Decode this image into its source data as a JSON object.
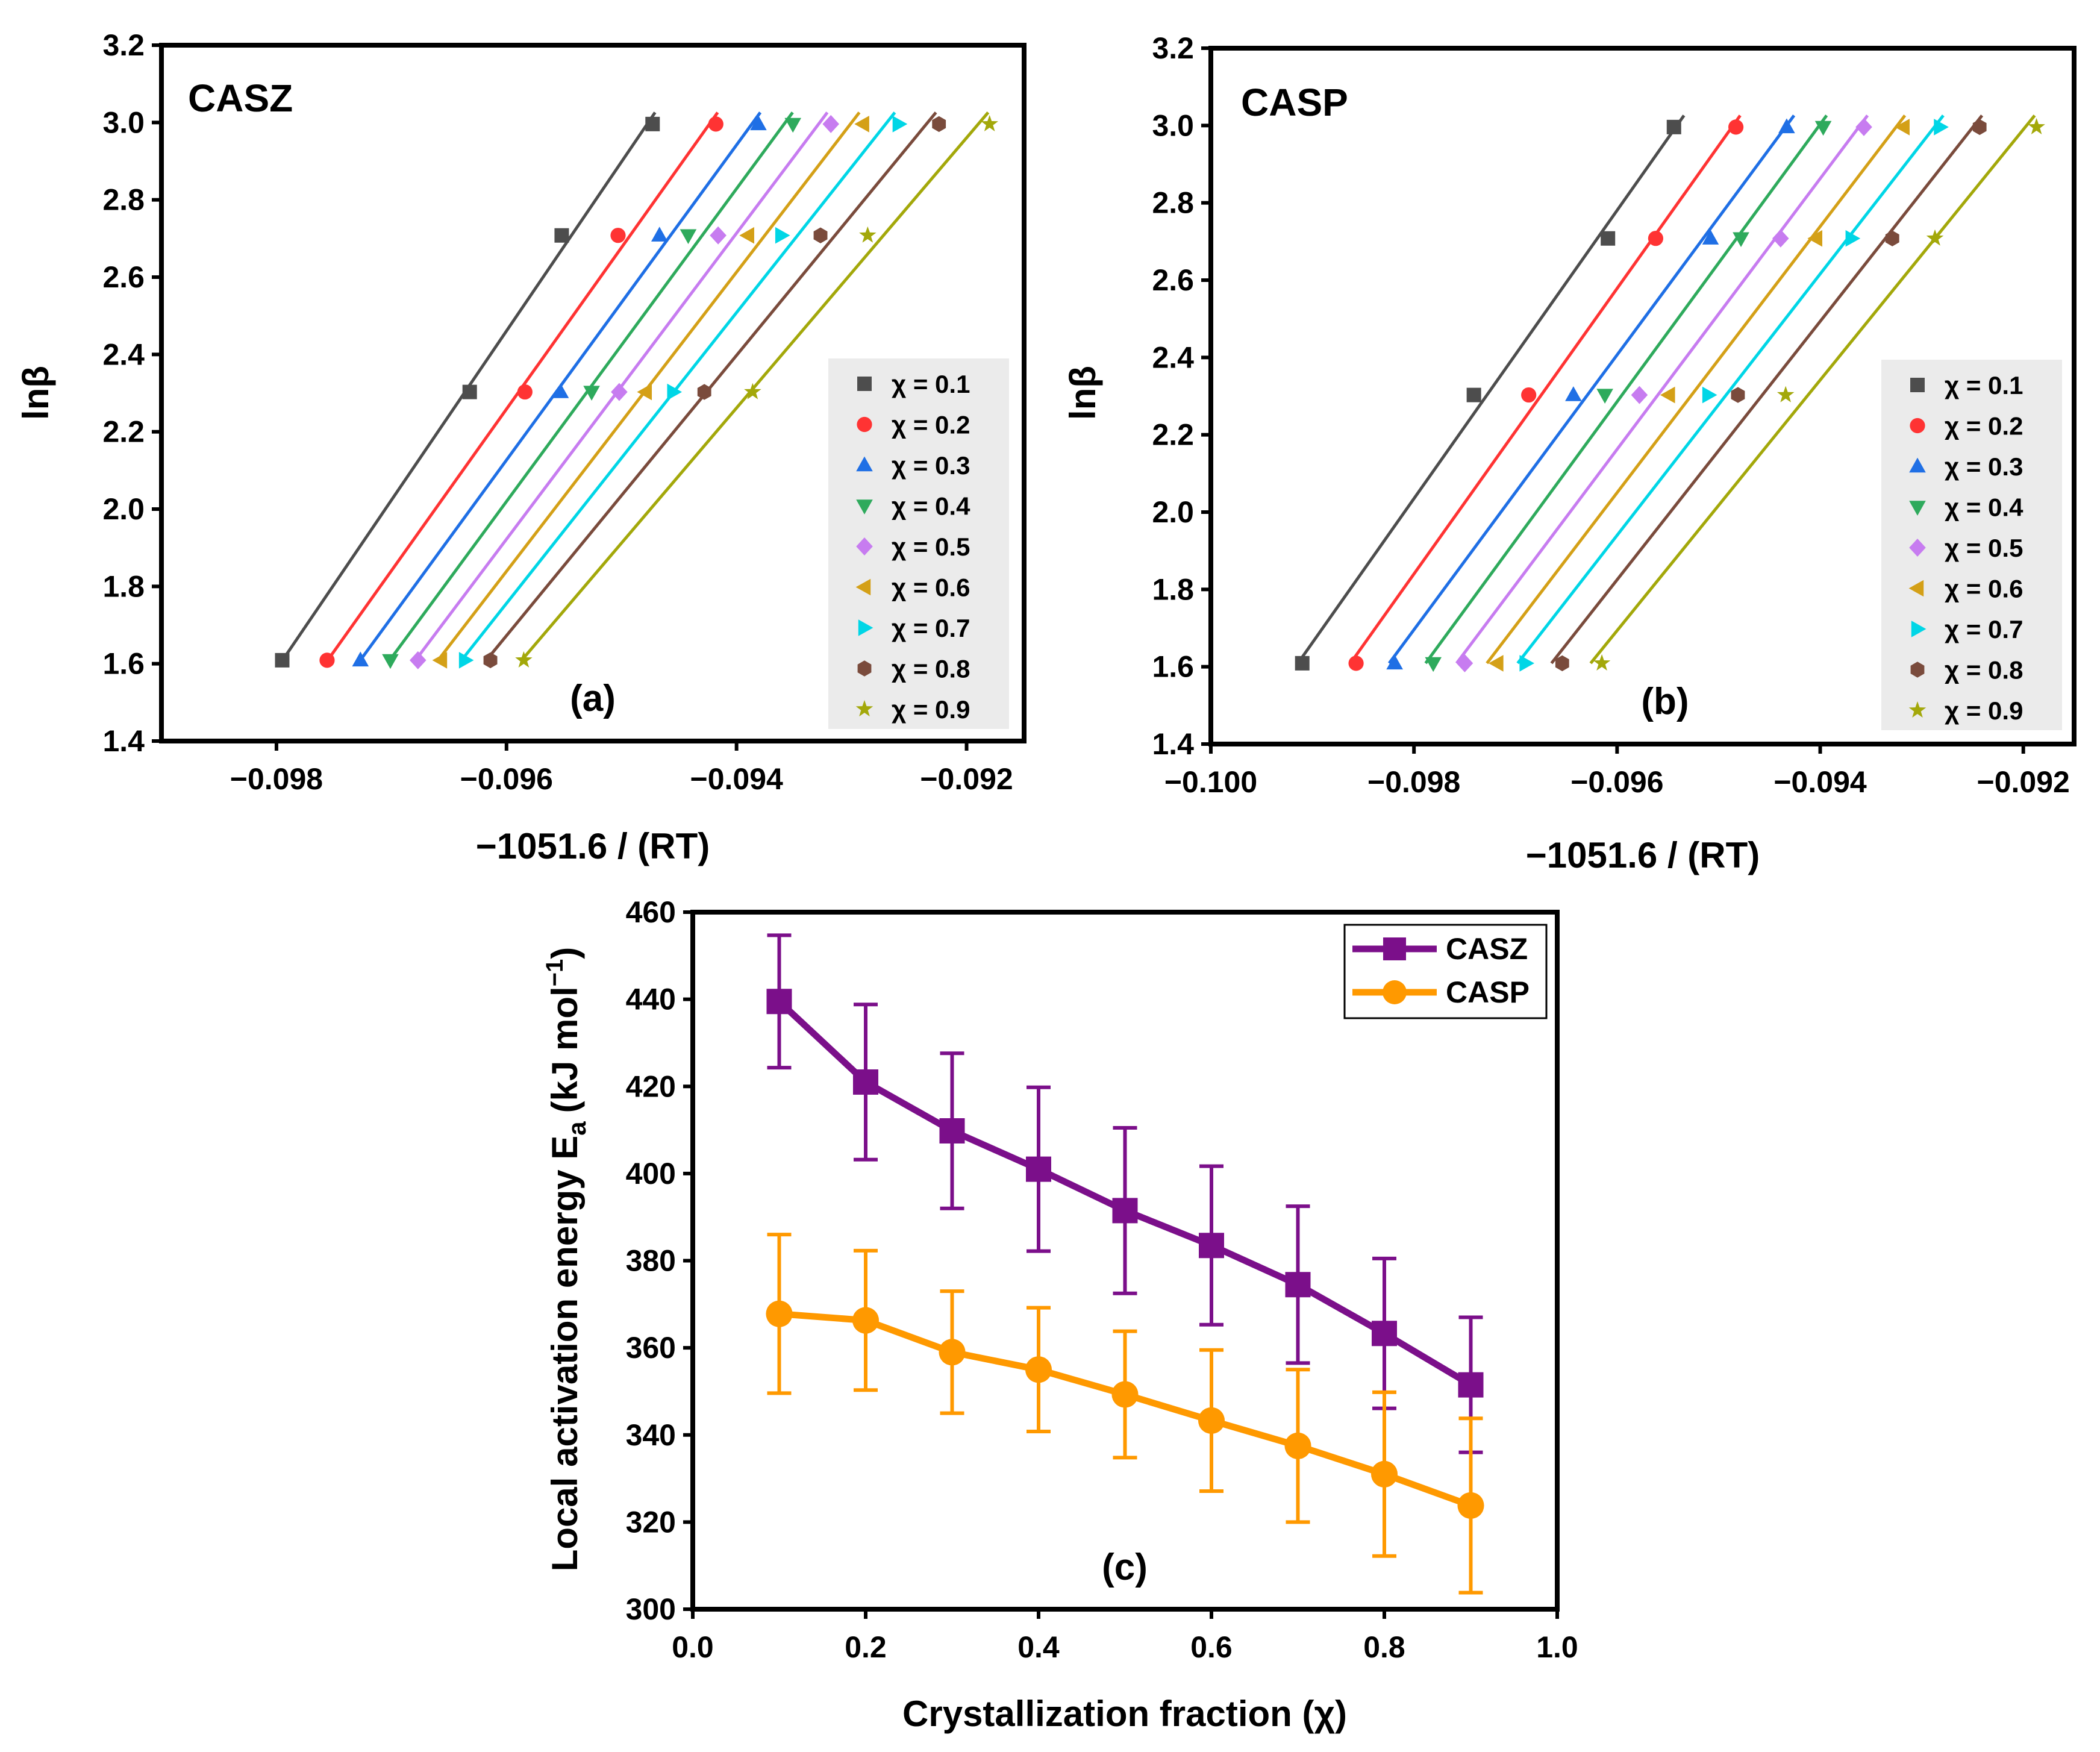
{
  "chart_data": [
    {
      "type": "scatter",
      "title": "CASZ",
      "panel_label": "(a)",
      "xlabel": "−1051.6 / (RT)",
      "ylabel": "lnβ",
      "xlim": [
        -0.099,
        -0.0915
      ],
      "ylim": [
        1.4,
        3.2
      ],
      "x_ticks": [
        "−0.098",
        "−0.096",
        "−0.094",
        "−0.092"
      ],
      "y_ticks": [
        "1.4",
        "1.6",
        "1.8",
        "2.0",
        "2.2",
        "2.4",
        "2.6",
        "2.8",
        "3.0",
        "3.2"
      ],
      "y_values": [
        1.609,
        2.303,
        2.708,
        2.996
      ],
      "legend_position": "right",
      "series": [
        {
          "name": "χ = 0.1",
          "x": [
            -0.09795,
            -0.09632,
            -0.09552,
            -0.09473
          ]
        },
        {
          "name": "χ = 0.2",
          "x": [
            -0.09756,
            -0.09584,
            -0.09503,
            -0.09418
          ]
        },
        {
          "name": "χ = 0.3",
          "x": [
            -0.09727,
            -0.09553,
            -0.09467,
            -0.09381
          ]
        },
        {
          "name": "χ = 0.4",
          "x": [
            -0.09701,
            -0.09526,
            -0.09442,
            -0.09351
          ]
        },
        {
          "name": "χ = 0.5",
          "x": [
            -0.09677,
            -0.09502,
            -0.09416,
            -0.09318
          ]
        },
        {
          "name": "χ = 0.6",
          "x": [
            -0.09657,
            -0.09479,
            -0.0939,
            -0.0929
          ]
        },
        {
          "name": "χ = 0.7",
          "x": [
            -0.09636,
            -0.09455,
            -0.09361,
            -0.09259
          ]
        },
        {
          "name": "χ = 0.8",
          "x": [
            -0.09614,
            -0.09428,
            -0.09327,
            -0.09224
          ]
        },
        {
          "name": "χ = 0.9",
          "x": [
            -0.09585,
            -0.09386,
            -0.09286,
            -0.0918
          ]
        }
      ]
    },
    {
      "type": "scatter",
      "title": "CASP",
      "panel_label": "(b)",
      "xlabel": "−1051.6 / (RT)",
      "ylabel": "lnβ",
      "xlim": [
        -0.1,
        -0.0915
      ],
      "ylim": [
        1.4,
        3.2
      ],
      "x_ticks": [
        "−0.100",
        "−0.098",
        "−0.096",
        "−0.094",
        "−0.092"
      ],
      "y_ticks": [
        "1.4",
        "1.6",
        "1.8",
        "2.0",
        "2.2",
        "2.4",
        "2.6",
        "2.8",
        "3.0",
        "3.2"
      ],
      "y_values": [
        1.609,
        2.303,
        2.708,
        2.996
      ],
      "legend_position": "right",
      "series": [
        {
          "name": "χ = 0.1",
          "x": [
            -0.0991,
            -0.09741,
            -0.09609,
            -0.09544
          ]
        },
        {
          "name": "χ = 0.2",
          "x": [
            -0.09857,
            -0.09687,
            -0.09562,
            -0.09483
          ]
        },
        {
          "name": "χ = 0.3",
          "x": [
            -0.09819,
            -0.09643,
            -0.09508,
            -0.09433
          ]
        },
        {
          "name": "χ = 0.4",
          "x": [
            -0.09781,
            -0.09612,
            -0.09478,
            -0.09397
          ]
        },
        {
          "name": "χ = 0.5",
          "x": [
            -0.0975,
            -0.09578,
            -0.09439,
            -0.09357
          ]
        },
        {
          "name": "χ = 0.6",
          "x": [
            -0.09718,
            -0.09549,
            -0.09404,
            -0.09318
          ]
        },
        {
          "name": "χ = 0.7",
          "x": [
            -0.0969,
            -0.0951,
            -0.09369,
            -0.09282
          ]
        },
        {
          "name": "χ = 0.8",
          "x": [
            -0.09654,
            -0.09481,
            -0.09329,
            -0.09243
          ]
        },
        {
          "name": "χ = 0.9",
          "x": [
            -0.09615,
            -0.09434,
            -0.09287,
            -0.09187
          ]
        }
      ]
    },
    {
      "type": "line",
      "panel_label": "(c)",
      "xlabel": "Crystallization fraction (χ)",
      "ylabel": "Local activation energy E",
      "ylabel_subscript": "a",
      "ylabel_units": "(kJ mol",
      "ylabel_units_sup": "−1",
      "ylabel_units_end": ")",
      "xlim": [
        0.0,
        1.0
      ],
      "ylim": [
        300,
        460
      ],
      "x_ticks": [
        "0.0",
        "0.2",
        "0.4",
        "0.6",
        "0.8",
        "1.0"
      ],
      "y_ticks": [
        "300",
        "320",
        "340",
        "360",
        "380",
        "400",
        "420",
        "440",
        "460"
      ],
      "x": [
        0.1,
        0.2,
        0.3,
        0.4,
        0.5,
        0.6,
        0.7,
        0.8,
        0.9
      ],
      "legend_position": "top-right",
      "series": [
        {
          "name": "CASZ",
          "values": [
            439.5,
            421.0,
            409.8,
            401.0,
            391.5,
            383.5,
            374.5,
            363.3,
            351.5
          ],
          "errors": [
            15.2,
            17.8,
            17.8,
            18.8,
            19.0,
            18.2,
            18.0,
            17.2,
            15.5
          ]
        },
        {
          "name": "CASP",
          "values": [
            367.8,
            366.3,
            359.0,
            355.0,
            349.3,
            343.3,
            337.5,
            331.0,
            323.8
          ],
          "errors": [
            18.2,
            16.0,
            14.0,
            14.2,
            14.5,
            16.2,
            17.5,
            18.8,
            20.0
          ]
        }
      ]
    }
  ],
  "colors": {
    "series9": [
      "#4d4d4d",
      "#ff3333",
      "#1f6fe5",
      "#2eaa5c",
      "#c77cf0",
      "#d4a017",
      "#00d6e6",
      "#7a4b3c",
      "#a3a80a"
    ],
    "casz": "#7b0f8a",
    "casp": "#ff9900",
    "legend_bg": "#ebebeb"
  },
  "markers": [
    "square",
    "circle",
    "triangle-up",
    "triangle-down",
    "diamond",
    "triangle-left",
    "triangle-right",
    "hexagon",
    "star"
  ]
}
